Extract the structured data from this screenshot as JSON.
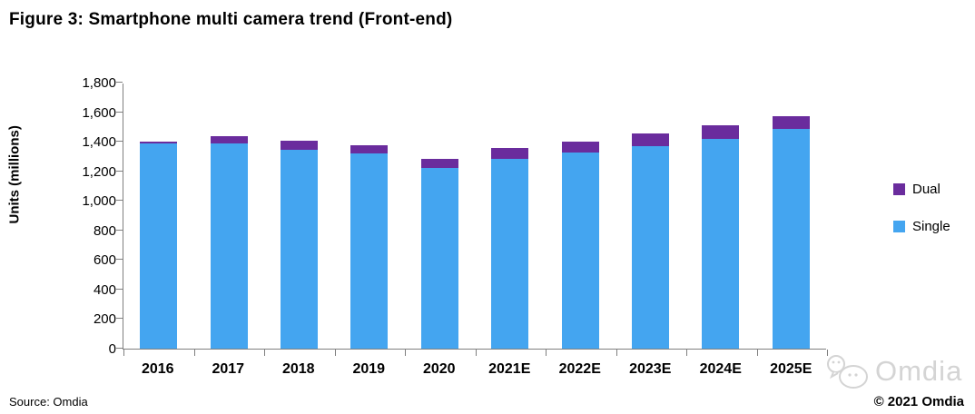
{
  "title": "Figure 3: Smartphone multi camera trend (Front-end)",
  "source_note": "Source: Omdia",
  "copyright_note": "© 2021 Omdia",
  "watermark_text": "Omdia",
  "colors": {
    "single": "#44A5F0",
    "dual": "#6A2C9D",
    "axis": "#7f7f7f",
    "watermark": "#d4d4d4"
  },
  "legend": [
    {
      "label": "Dual",
      "color": "#6A2C9D"
    },
    {
      "label": "Single",
      "color": "#44A5F0"
    }
  ],
  "chart_data": {
    "type": "bar",
    "stacked": true,
    "title": "Figure 3: Smartphone multi camera trend (Front-end)",
    "categories": [
      "2016",
      "2017",
      "2018",
      "2019",
      "2020",
      "2021E",
      "2022E",
      "2023E",
      "2024E",
      "2025E"
    ],
    "series": [
      {
        "name": "Single",
        "color": "#44A5F0",
        "values": [
          1390,
          1390,
          1345,
          1320,
          1225,
          1285,
          1325,
          1370,
          1420,
          1485
        ]
      },
      {
        "name": "Dual",
        "color": "#6A2C9D",
        "values": [
          10,
          50,
          65,
          55,
          60,
          70,
          75,
          85,
          90,
          90
        ]
      }
    ],
    "xlabel": "",
    "ylabel": "Units (millions)",
    "ylim": [
      0,
      1800
    ],
    "ytick_step": 200,
    "ytick_labels": [
      "0",
      "200",
      "400",
      "600",
      "800",
      "1,000",
      "1,200",
      "1,400",
      "1,600",
      "1,800"
    ],
    "grid": false,
    "legend_position": "right"
  }
}
